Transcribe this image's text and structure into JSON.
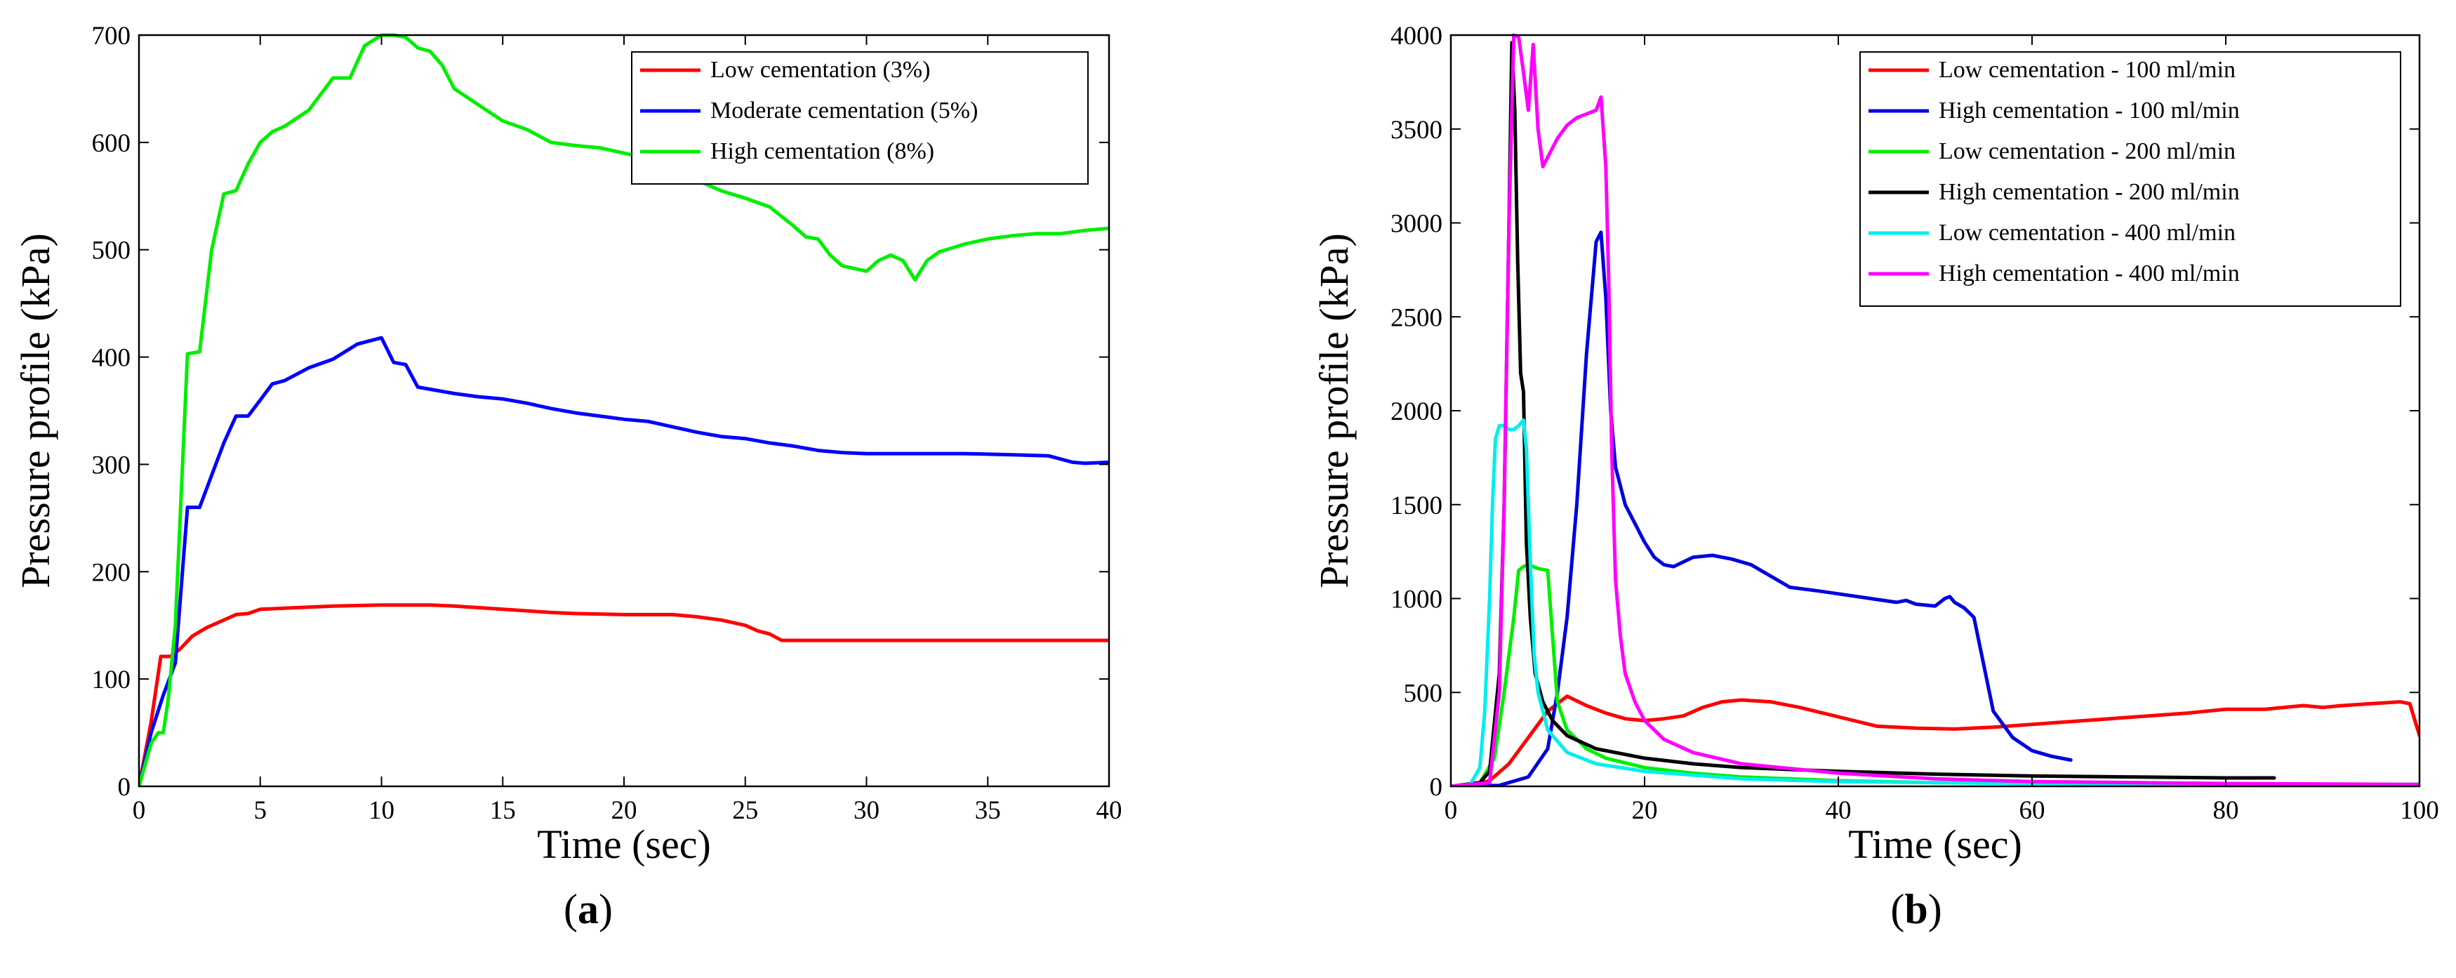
{
  "chart_data": [
    {
      "panel": "a",
      "type": "line",
      "title": "",
      "xlabel": "Time (sec)",
      "ylabel": "Pressure profile (kPa)",
      "xlim": [
        0,
        40
      ],
      "ylim": [
        0,
        700
      ],
      "xticks": [
        0,
        5,
        10,
        15,
        20,
        25,
        30,
        35,
        40
      ],
      "yticks": [
        0,
        100,
        200,
        300,
        400,
        500,
        600,
        700
      ],
      "legend_position": "top-right",
      "series": [
        {
          "name": "Low cementation (3%)",
          "color": "#ff0000",
          "x": [
            0,
            0.5,
            0.9,
            1.3,
            1.7,
            2.2,
            2.8,
            3.5,
            4,
            4.5,
            5,
            6,
            8,
            10,
            12,
            13,
            15,
            17,
            18,
            20,
            21,
            22,
            23,
            24,
            25,
            25.5,
            26,
            26.5,
            27,
            30,
            35,
            40
          ],
          "y": [
            0,
            60,
            121,
            121,
            128,
            140,
            148,
            155,
            160,
            161,
            165,
            166,
            168,
            169,
            169,
            168,
            165,
            162,
            161,
            160,
            160,
            160,
            158,
            155,
            150,
            145,
            142,
            136,
            136,
            136,
            136,
            136
          ]
        },
        {
          "name": "Moderate cementation (5%)",
          "color": "#0000ff",
          "x": [
            0,
            0.5,
            1,
            1.5,
            2,
            2.5,
            3,
            3.5,
            4,
            4.5,
            5,
            5.5,
            6,
            7,
            8,
            9,
            10,
            10.5,
            11,
            11.5,
            12,
            13,
            14,
            15,
            16,
            17,
            18,
            19,
            20,
            21,
            22,
            23,
            24,
            25,
            26,
            27,
            28,
            29,
            30,
            32,
            34,
            36,
            37.5,
            38,
            38.5,
            39,
            40
          ],
          "y": [
            0,
            50,
            85,
            115,
            260,
            260,
            290,
            320,
            345,
            345,
            360,
            375,
            378,
            390,
            398,
            412,
            418,
            395,
            393,
            372,
            370,
            366,
            363,
            361,
            357,
            352,
            348,
            345,
            342,
            340,
            335,
            330,
            326,
            324,
            320,
            317,
            313,
            311,
            310,
            310,
            310,
            309,
            308,
            305,
            302,
            301,
            302
          ]
        },
        {
          "name": "High cementation (8%)",
          "color": "#00ee00",
          "x": [
            0,
            0.5,
            0.8,
            1,
            1.2,
            1.5,
            2,
            2.5,
            3,
            3.5,
            4,
            4.5,
            5,
            5.5,
            6,
            7,
            8,
            8.7,
            9.3,
            10,
            10.5,
            11,
            11.5,
            12,
            12.5,
            13,
            14,
            15,
            16,
            17,
            18,
            19,
            20,
            21,
            22,
            23,
            24,
            25,
            26,
            27,
            27.5,
            28,
            28.5,
            29,
            30,
            30.5,
            31,
            31.5,
            32,
            32.5,
            33,
            34,
            35,
            36,
            37,
            38,
            39,
            40
          ],
          "y": [
            0,
            40,
            50,
            50,
            80,
            150,
            403,
            405,
            500,
            552,
            555,
            580,
            600,
            610,
            615,
            630,
            660,
            660,
            690,
            700,
            700,
            698,
            688,
            685,
            672,
            650,
            635,
            620,
            612,
            600,
            597,
            595,
            590,
            585,
            573,
            565,
            555,
            548,
            540,
            522,
            512,
            510,
            495,
            485,
            480,
            490,
            495,
            490,
            472,
            490,
            498,
            505,
            510,
            513,
            515,
            515,
            518,
            520
          ]
        }
      ]
    },
    {
      "panel": "b",
      "type": "line",
      "title": "",
      "xlabel": "Time (sec)",
      "ylabel": "Pressure profile (kPa)",
      "xlim": [
        0,
        100
      ],
      "ylim": [
        0,
        4000
      ],
      "xticks": [
        0,
        20,
        40,
        60,
        80,
        100
      ],
      "yticks": [
        0,
        500,
        1000,
        1500,
        2000,
        2500,
        3000,
        3500,
        4000
      ],
      "legend_position": "top-right",
      "series": [
        {
          "name": "Low cementation - 100 ml/min",
          "color": "#ff0000",
          "x": [
            0,
            2,
            4,
            6,
            8,
            10,
            12,
            14,
            16,
            18,
            20,
            22,
            24,
            26,
            28,
            30,
            33,
            36,
            40,
            44,
            48,
            52,
            56,
            60,
            64,
            68,
            72,
            76,
            80,
            84,
            86,
            88,
            90,
            92,
            95,
            98,
            99,
            100
          ],
          "y": [
            0,
            5,
            30,
            120,
            260,
            400,
            480,
            430,
            390,
            360,
            350,
            360,
            375,
            420,
            450,
            460,
            450,
            420,
            370,
            320,
            310,
            305,
            315,
            330,
            345,
            360,
            375,
            390,
            410,
            410,
            420,
            430,
            420,
            430,
            440,
            450,
            440,
            270
          ]
        },
        {
          "name": "High cementation - 100 ml/min",
          "color": "#0000dd",
          "x": [
            0,
            5,
            8,
            10,
            11,
            12,
            13,
            14,
            15,
            15.5,
            16,
            16.5,
            17,
            18,
            19,
            20,
            21,
            22,
            23,
            25,
            27,
            29,
            31,
            33,
            35,
            38,
            42,
            46,
            47,
            48,
            50,
            51,
            51.5,
            52,
            53,
            54,
            55,
            56,
            58,
            60,
            62,
            64
          ],
          "y": [
            0,
            5,
            50,
            200,
            500,
            900,
            1500,
            2300,
            2900,
            2950,
            2600,
            2000,
            1700,
            1500,
            1400,
            1300,
            1220,
            1180,
            1170,
            1220,
            1230,
            1210,
            1180,
            1120,
            1060,
            1040,
            1010,
            980,
            990,
            970,
            960,
            1000,
            1010,
            980,
            950,
            900,
            650,
            400,
            260,
            190,
            160,
            140
          ]
        },
        {
          "name": "Low cementation - 200 ml/min",
          "color": "#00ee00",
          "x": [
            0,
            3,
            4.5,
            5.5,
            6.5,
            7,
            7.5,
            8,
            9,
            10,
            10.5,
            11,
            12,
            14,
            16,
            20,
            25,
            30,
            40,
            50,
            60,
            70,
            80,
            90,
            100
          ],
          "y": [
            0,
            20,
            150,
            500,
            900,
            1150,
            1170,
            1180,
            1160,
            1150,
            800,
            450,
            300,
            200,
            150,
            100,
            70,
            50,
            30,
            20,
            15,
            12,
            10,
            10,
            10
          ]
        },
        {
          "name": "High cementation - 200 ml/min",
          "color": "#000000",
          "x": [
            0,
            3,
            4,
            5,
            5.5,
            6,
            6.3,
            6.6,
            6.9,
            7.2,
            7.5,
            7.8,
            8.2,
            8.7,
            9.5,
            10.5,
            12,
            15,
            20,
            25,
            30,
            40,
            50,
            60,
            70,
            80,
            85
          ],
          "y": [
            0,
            20,
            80,
            600,
            1500,
            3000,
            3960,
            3600,
            2800,
            2200,
            2100,
            1300,
            900,
            600,
            450,
            350,
            270,
            200,
            150,
            120,
            100,
            80,
            65,
            55,
            50,
            45,
            45
          ]
        },
        {
          "name": "Low cementation - 400 ml/min",
          "color": "#00eeee",
          "x": [
            0,
            2,
            3,
            3.5,
            4,
            4.3,
            4.6,
            5,
            5.5,
            6,
            6.5,
            7,
            7.5,
            7.8,
            8.2,
            8.6,
            9,
            10,
            12,
            15,
            20,
            30,
            40,
            60,
            80,
            100
          ],
          "y": [
            0,
            10,
            100,
            400,
            1000,
            1500,
            1850,
            1920,
            1920,
            1900,
            1900,
            1920,
            1950,
            1800,
            1200,
            700,
            500,
            300,
            180,
            120,
            80,
            40,
            25,
            15,
            10,
            10
          ]
        },
        {
          "name": "High cementation - 400 ml/min",
          "color": "#ff00ff",
          "x": [
            0,
            4,
            5,
            5.5,
            6,
            6.5,
            7,
            7.5,
            8,
            8.5,
            9,
            9.5,
            10,
            11,
            12,
            13,
            14,
            15,
            15.5,
            16,
            16.3,
            16.6,
            17,
            17.5,
            18,
            19,
            20,
            22,
            25,
            30,
            40,
            50,
            60,
            80,
            100
          ],
          "y": [
            0,
            20,
            500,
            1500,
            3000,
            4000,
            3990,
            3800,
            3600,
            3950,
            3500,
            3300,
            3350,
            3450,
            3520,
            3560,
            3580,
            3600,
            3670,
            3300,
            2700,
            1800,
            1100,
            800,
            600,
            450,
            350,
            250,
            180,
            120,
            70,
            40,
            25,
            15,
            10
          ]
        }
      ]
    }
  ],
  "captions": [
    {
      "open": "(",
      "letter": "a",
      "close": ")"
    },
    {
      "open": "(",
      "letter": "b",
      "close": ")"
    }
  ]
}
